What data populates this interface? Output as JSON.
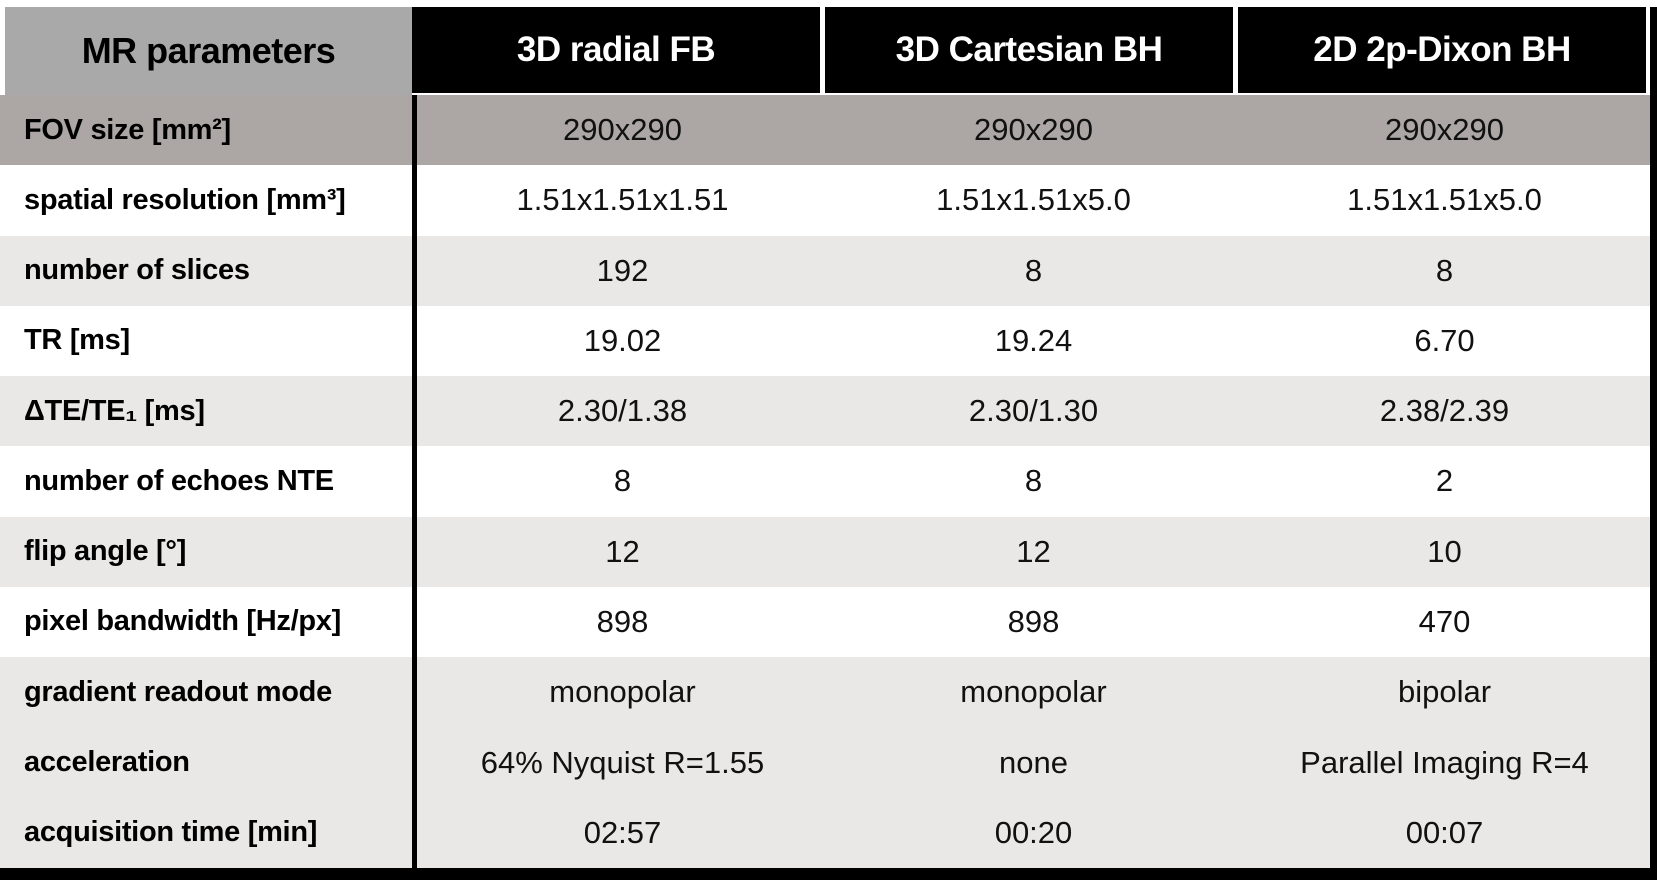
{
  "colors": {
    "page_bg": "#ffffff",
    "header_bg": "#000000",
    "header_text": "#ffffff",
    "corner_bg": "#a9a9a9",
    "fov_row_bg": "#aca7a4",
    "light_row_bg": "#e9e8e7",
    "white_row_bg": "#ffffff",
    "label_text": "#000000",
    "value_text": "#111111",
    "divider": "#000000"
  },
  "table": {
    "corner_label": "MR parameters",
    "columns": [
      "3D radial FB",
      "3D Cartesian BH",
      "2D 2p-Dixon BH"
    ],
    "rows": [
      {
        "label": "FOV size [mm²]",
        "values": [
          "290x290",
          "290x290",
          "290x290"
        ],
        "shade": "dark"
      },
      {
        "label": "spatial resolution [mm³]",
        "values": [
          "1.51x1.51x1.51",
          "1.51x1.51x5.0",
          "1.51x1.51x5.0"
        ],
        "shade": "white"
      },
      {
        "label": "number of slices",
        "values": [
          "192",
          "8",
          "8"
        ],
        "shade": "light"
      },
      {
        "label": "TR [ms]",
        "values": [
          "19.02",
          "19.24",
          "6.70"
        ],
        "shade": "white"
      },
      {
        "label": "ΔTE/TE₁ [ms]",
        "values": [
          "2.30/1.38",
          "2.30/1.30",
          "2.38/2.39"
        ],
        "shade": "light"
      },
      {
        "label": "number of echoes NTE",
        "values": [
          "8",
          "8",
          "2"
        ],
        "shade": "white"
      },
      {
        "label": "flip angle [°]",
        "values": [
          "12",
          "12",
          "10"
        ],
        "shade": "light"
      },
      {
        "label": "pixel bandwidth [Hz/px]",
        "values": [
          "898",
          "898",
          "470"
        ],
        "shade": "white"
      },
      {
        "label": "gradient readout mode",
        "values": [
          "monopolar",
          "monopolar",
          "bipolar"
        ],
        "shade": "light"
      },
      {
        "label": "acceleration",
        "values": [
          "64% Nyquist R=1.55",
          "none",
          "Parallel Imaging R=4"
        ],
        "shade": "light"
      },
      {
        "label": "acquisition time [min]",
        "values": [
          "02:57",
          "00:20",
          "00:07"
        ],
        "shade": "light"
      }
    ]
  },
  "chart_data": {
    "type": "table",
    "title": "MR parameters",
    "columns": [
      "MR parameters",
      "3D radial FB",
      "3D Cartesian BH",
      "2D 2p-Dixon BH"
    ],
    "rows": [
      [
        "FOV size [mm²]",
        "290x290",
        "290x290",
        "290x290"
      ],
      [
        "spatial resolution [mm³]",
        "1.51x1.51x1.51",
        "1.51x1.51x5.0",
        "1.51x1.51x5.0"
      ],
      [
        "number of slices",
        "192",
        "8",
        "8"
      ],
      [
        "TR [ms]",
        "19.02",
        "19.24",
        "6.70"
      ],
      [
        "ΔTE/TE₁ [ms]",
        "2.30/1.38",
        "2.30/1.30",
        "2.38/2.39"
      ],
      [
        "number of echoes NTE",
        "8",
        "8",
        "2"
      ],
      [
        "flip angle [°]",
        "12",
        "12",
        "10"
      ],
      [
        "pixel bandwidth [Hz/px]",
        "898",
        "898",
        "470"
      ],
      [
        "gradient readout mode",
        "monopolar",
        "monopolar",
        "bipolar"
      ],
      [
        "acceleration",
        "64% Nyquist R=1.55",
        "none",
        "Parallel Imaging R=4"
      ],
      [
        "acquisition time [min]",
        "02:57",
        "00:20",
        "00:07"
      ]
    ]
  }
}
